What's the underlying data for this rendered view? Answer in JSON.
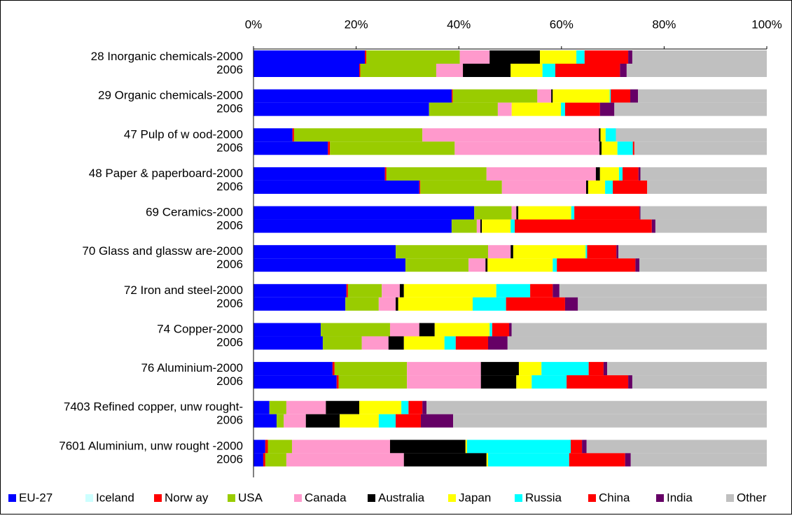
{
  "chart_data": {
    "type": "stacked_barh",
    "categories": [
      "28 Inorganic chemicals-2000",
      "2006",
      "29 Organic chemicals-2000",
      "2006",
      "47 Pulp of w ood-2000",
      "2006",
      "48 Paper & paperboard-2000",
      "2006",
      "69 Ceramics-2000",
      "2006",
      "70 Glass and glassw are-2000",
      "2006",
      "72 Iron and steel-2000",
      "2006",
      "74 Copper-2000",
      "2006",
      "76 Aluminium-2000",
      "2006",
      "7403 Refined copper, unw rought-",
      "2006",
      "7601 Aluminium, unw rought -2000",
      "2006"
    ],
    "series": [
      {
        "name": "EU-27",
        "color": "#0000ff",
        "values": [
          21.7,
          20.6,
          38.6,
          34.2,
          7.6,
          14.5,
          25.6,
          32.3,
          43.0,
          38.6,
          27.7,
          29.6,
          18.1,
          17.9,
          13.1,
          13.5,
          15.4,
          16.2,
          3.1,
          4.5,
          2.3,
          1.9
        ]
      },
      {
        "name": "Iceland",
        "color": "#ccffff",
        "values": [
          0,
          0,
          0,
          0,
          0,
          0,
          0,
          0,
          0,
          0,
          0,
          0,
          0,
          0,
          0,
          0,
          0,
          0,
          0,
          0,
          0,
          0
        ]
      },
      {
        "name": "Norw ay",
        "color": "#ff0000",
        "values": [
          0.3,
          0.2,
          0.2,
          0,
          0.3,
          0.4,
          0.3,
          0.2,
          0,
          0,
          0,
          0,
          0.3,
          0,
          0,
          0,
          0.4,
          0.4,
          0,
          0,
          0.5,
          0.4
        ]
      },
      {
        "name": "USA",
        "color": "#99cc00",
        "values": [
          18.2,
          14.8,
          16.5,
          13.4,
          25.0,
          24.3,
          19.5,
          15.9,
          7.3,
          4.9,
          18.0,
          12.3,
          6.6,
          6.5,
          13.5,
          7.6,
          14.1,
          13.3,
          3.3,
          1.4,
          4.7,
          4.1
        ]
      },
      {
        "name": "Canada",
        "color": "#ff99cc",
        "values": [
          5.8,
          5.2,
          2.7,
          2.7,
          34.4,
          28.2,
          21.3,
          16.4,
          0.9,
          0.7,
          4.4,
          3.3,
          3.5,
          3.3,
          5.7,
          5.2,
          14.4,
          14.4,
          7.7,
          4.3,
          19.1,
          22.9
        ]
      },
      {
        "name": "Australia",
        "color": "#000000",
        "values": [
          9.8,
          9.3,
          0.3,
          0,
          0.3,
          0.4,
          0.8,
          0.4,
          0.4,
          0.3,
          0.5,
          0.4,
          0.8,
          0.5,
          3.0,
          3.0,
          7.4,
          6.9,
          6.5,
          6.6,
          14.7,
          16.1
        ]
      },
      {
        "name": "Japan",
        "color": "#ffff00",
        "values": [
          7.1,
          6.2,
          11.1,
          9.6,
          1.0,
          3.1,
          3.7,
          3.3,
          10.3,
          5.6,
          14.1,
          12.7,
          18.0,
          14.5,
          10.7,
          7.9,
          4.4,
          3.0,
          8.2,
          7.6,
          0.3,
          0.3
        ]
      },
      {
        "name": "Russia",
        "color": "#00ffff",
        "values": [
          1.6,
          2.5,
          0.2,
          0.8,
          2.0,
          3.0,
          0.7,
          1.5,
          0.6,
          0.8,
          0.3,
          0.8,
          6.6,
          6.5,
          0.5,
          2.2,
          9.2,
          6.8,
          1.4,
          3.3,
          20.2,
          15.8
        ]
      },
      {
        "name": "China",
        "color": "#ff0000",
        "values": [
          8.5,
          12.6,
          3.8,
          6.8,
          0,
          0.3,
          3.1,
          6.7,
          12.7,
          26.7,
          5.7,
          15.3,
          4.4,
          11.5,
          3.3,
          6.3,
          2.9,
          12.0,
          2.7,
          4.9,
          2.2,
          10.9
        ]
      },
      {
        "name": "India",
        "color": "#660066",
        "values": [
          0.8,
          1.3,
          1.5,
          2.8,
          0,
          0,
          0.4,
          0,
          0.2,
          0.7,
          0.4,
          0.8,
          1.3,
          2.5,
          0.5,
          3.8,
          0.7,
          0.8,
          0.8,
          6.3,
          0.9,
          1.1
        ]
      },
      {
        "name": "Other",
        "color": "#c0c0c0",
        "values": [
          26.2,
          27.3,
          25.1,
          29.7,
          29.4,
          25.8,
          24.6,
          23.3,
          24.6,
          21.7,
          28.9,
          24.8,
          40.4,
          36.8,
          49.7,
          50.5,
          31.1,
          26.2,
          66.3,
          61.1,
          35.1,
          26.5
        ]
      }
    ],
    "xlim": [
      0,
      100
    ],
    "xticks": [
      {
        "value": 0,
        "label": "0%"
      },
      {
        "value": 20,
        "label": "20%"
      },
      {
        "value": 40,
        "label": "40%"
      },
      {
        "value": 60,
        "label": "60%"
      },
      {
        "value": 80,
        "label": "80%"
      },
      {
        "value": 100,
        "label": "100%"
      }
    ],
    "legend": "bottom"
  }
}
